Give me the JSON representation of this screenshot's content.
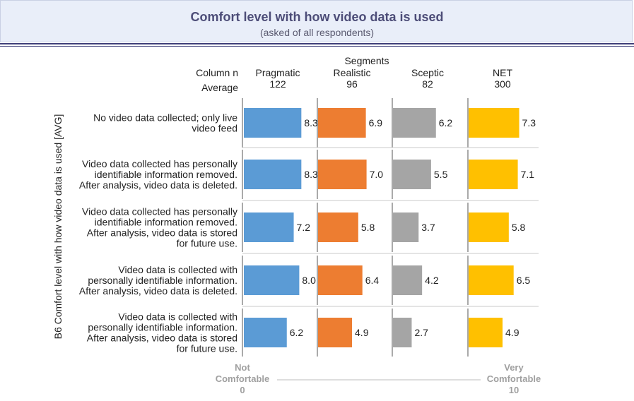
{
  "header": {
    "title": "Comfort level with how video data is used",
    "subtitle": "(asked of all respondents)"
  },
  "chart_data": {
    "type": "bar",
    "orientation": "horizontal",
    "title": "Comfort level with how video data is used",
    "subtitle": "(asked of all respondents)",
    "ylabel": "B6 Comfort level with how video data is used [AVG]",
    "segments_label": "Segments",
    "row_header": [
      "Column n",
      "Average"
    ],
    "categories": [
      [
        "No video data collected; only live",
        "video feed"
      ],
      [
        "Video data collected has personally",
        "identifiable information removed.",
        "After analysis, video data is deleted."
      ],
      [
        "Video data collected has personally",
        "identifiable information removed.",
        "After analysis, video data is stored",
        "for future use."
      ],
      [
        "Video data is collected with",
        "personally identifiable information.",
        "After analysis, video data is deleted."
      ],
      [
        "Video data is collected with",
        "personally identifiable information.",
        "After analysis, video data is stored",
        "for future use."
      ]
    ],
    "series": [
      {
        "name": "Pragmatic",
        "n": "122",
        "color": "#5b9bd5",
        "values": [
          8.3,
          8.3,
          7.2,
          8.0,
          6.2
        ],
        "labels": [
          "8.3",
          "8.3",
          "7.2",
          "8.0",
          "6.2"
        ]
      },
      {
        "name": "Realistic",
        "n": "96",
        "color": "#ed7d31",
        "values": [
          6.9,
          7.0,
          5.8,
          6.4,
          4.9
        ],
        "labels": [
          "6.9",
          "7.0",
          "5.8",
          "6.4",
          "4.9"
        ]
      },
      {
        "name": "Sceptic",
        "n": "82",
        "color": "#a5a5a5",
        "values": [
          6.2,
          5.5,
          3.7,
          4.2,
          2.7
        ],
        "labels": [
          "6.2",
          "5.5",
          "3.7",
          "4.2",
          "2.7"
        ]
      },
      {
        "name": "NET",
        "n": "300",
        "color": "#ffc000",
        "values": [
          7.3,
          7.1,
          5.8,
          6.5,
          4.9
        ],
        "labels": [
          "7.3",
          "7.1",
          "5.8",
          "6.5",
          "4.9"
        ]
      }
    ],
    "xlim": [
      0,
      10
    ],
    "scale_low": [
      "Not",
      "Comfortable",
      "0"
    ],
    "scale_high": [
      "Very",
      "Comfortable",
      "10"
    ]
  }
}
